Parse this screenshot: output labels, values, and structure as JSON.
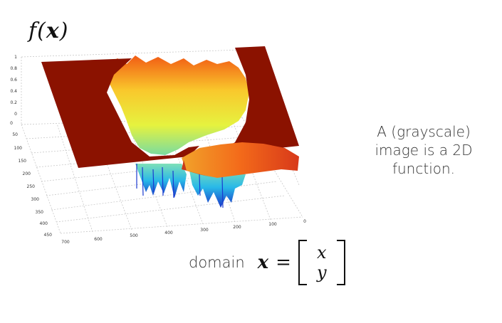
{
  "title": {
    "func": "f",
    "open": "(",
    "var": "x",
    "close": ")"
  },
  "caption": {
    "lines": [
      "A (grayscale)",
      "image is a 2D",
      "function."
    ]
  },
  "domain": {
    "word": "domain",
    "var": "x",
    "equals": "=",
    "vector": [
      "x",
      "y"
    ]
  },
  "plot": {
    "z_ticks": [
      "1",
      "0.8",
      "0.6",
      "0.4",
      "0.2",
      "0"
    ],
    "y_ticks": [
      "0",
      "50",
      "100",
      "150",
      "200",
      "250",
      "300",
      "350",
      "400",
      "450"
    ],
    "x_ticks": [
      "700",
      "600",
      "500",
      "400",
      "300",
      "200",
      "100",
      "0"
    ]
  },
  "colors": {
    "plane": "#8b1200",
    "surface_hot": "#e83b0c",
    "surface_warm": "#f7c52a",
    "surface_mid": "#e7f23e",
    "surface_cool": "#34c5e3",
    "surface_deep": "#1b3ccd"
  }
}
